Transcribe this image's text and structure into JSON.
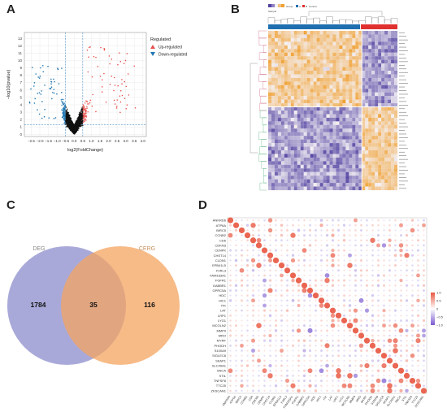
{
  "figure": {
    "panel_labels": [
      "A",
      "B",
      "C",
      "D"
    ]
  },
  "panel_a": {
    "xlabel": "log2(FoldChange)",
    "ylabel": "−log10(pvalue)",
    "legend_title": "Regulated",
    "legend_items": [
      {
        "label": "Up-regulated",
        "color": "#e8534f",
        "marker": "triangle-up"
      },
      {
        "label": "Down-regulated",
        "color": "#1f77b4",
        "marker": "triangle-down"
      }
    ],
    "x_ticks": [
      "−2.5",
      "−2.0",
      "−1.5",
      "−1.0",
      "−0.5",
      "0.0",
      "0.5",
      "1.0",
      "1.5",
      "2.0",
      "2.5",
      "3.0",
      "3.5",
      "4.0"
    ],
    "y_ticks": [
      "0",
      "1",
      "2",
      "3",
      "4",
      "5",
      "6",
      "7",
      "8",
      "9",
      "10",
      "11",
      "12",
      "13"
    ],
    "colors": {
      "up": "#e8534f",
      "down": "#1f77b4",
      "ns": "#111111",
      "threshold": "#4a90c8"
    }
  },
  "panel_b": {
    "legend_labels": [
      "Sample",
      "Group",
      "A",
      "B",
      "Control"
    ],
    "colors": {
      "high": "#f0a030",
      "low": "#5040a0",
      "mid": "#f4f0f4",
      "groupA": "#1f6fb0",
      "groupB": "#e03030"
    }
  },
  "panel_c": {
    "chart_data": {
      "type": "venn",
      "sets": [
        {
          "name": "DEG",
          "only": 1784,
          "color": "#8c8ccc"
        },
        {
          "name": "CERG",
          "only": 116,
          "color": "#f4a460"
        }
      ],
      "intersection": 35
    }
  },
  "panel_d": {
    "chart_data": {
      "type": "heatmap",
      "rows": [
        "ANKRD6",
        "ATP6A",
        "BIRC5",
        "CCNB2",
        "CD6",
        "CDKN3",
        "CENPK",
        "CHST14",
        "CLDN1",
        "EPB41L5",
        "F2RL3",
        "FAM183A1",
        "FGFR1",
        "GABBR1",
        "GPRC5A",
        "HDC",
        "HIC1",
        "ITK",
        "LAT",
        "LRP1",
        "LYG1",
        "MCOLN2",
        "MMP9",
        "MRO",
        "MYRF",
        "PHODH",
        "S100A9",
        "SIGLEC8",
        "SKAP1",
        "SLC40A1",
        "SNCA",
        "STIL",
        "TNFSF8",
        "TTC25",
        "ZKSCAN1"
      ],
      "columns": [
        "ANKRD6",
        "ATP6A",
        "BIRC5",
        "CCNB2",
        "CD6",
        "CDKN3",
        "CENPK",
        "CHST14",
        "CLDN1",
        "EPB41L5",
        "F2RL3",
        "FAM183A1",
        "FGFR1",
        "GABBR1",
        "GPRC5A",
        "HDC",
        "HIC1",
        "ITK",
        "LAT",
        "LRP1",
        "LYG1",
        "MCOLN2",
        "MMP9",
        "MRO",
        "MYRF",
        "PHODH",
        "S100A9",
        "SIGLEC8",
        "SKAP1",
        "SLC40A1",
        "SNCA",
        "STIL",
        "TNFSF8",
        "TTC25",
        "ZKSCAN1"
      ],
      "colorbar_ticks": [
        "1.0",
        "0.5",
        "0",
        "−0.5",
        "−1.0"
      ],
      "colors": {
        "pos": "#e8553f",
        "neg": "#7a5ad0"
      }
    }
  }
}
